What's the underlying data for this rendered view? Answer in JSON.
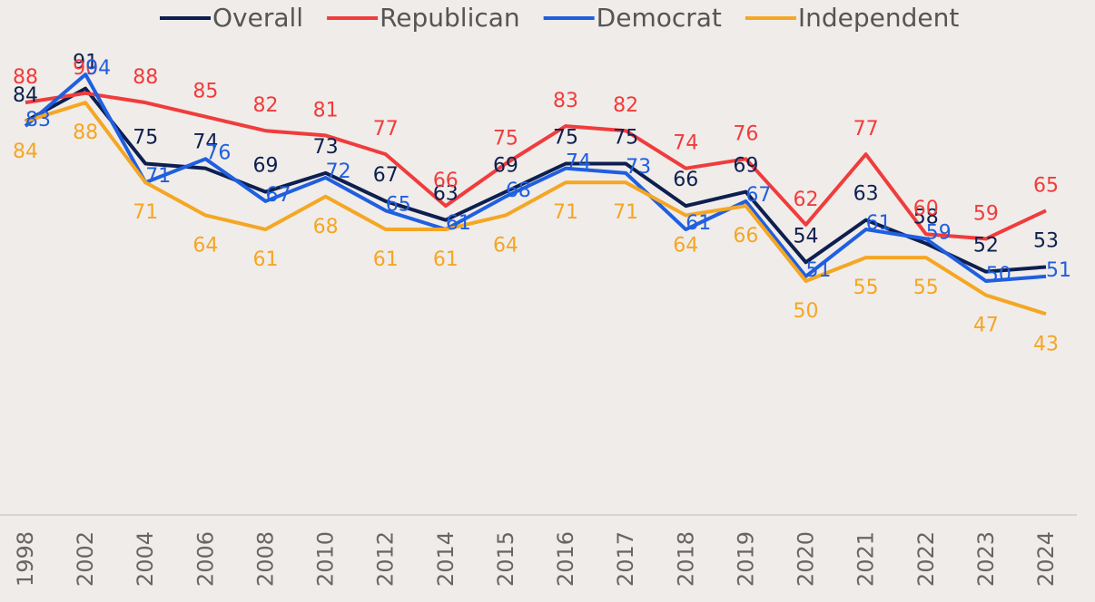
{
  "chart_data": {
    "type": "line",
    "categories": [
      "1998",
      "2002",
      "2004",
      "2006",
      "2008",
      "2010",
      "2012",
      "2014",
      "2015",
      "2016",
      "2017",
      "2018",
      "2019",
      "2020",
      "2021",
      "2022",
      "2023",
      "2024"
    ],
    "series": [
      {
        "name": "Overall",
        "color": "#0d1f4f",
        "values": [
          84,
          91,
          75,
          74,
          69,
          73,
          67,
          63,
          69,
          75,
          75,
          66,
          69,
          54,
          63,
          58,
          52,
          53
        ]
      },
      {
        "name": "Republican",
        "color": "#f03c3c",
        "values": [
          88,
          90,
          88,
          85,
          82,
          81,
          77,
          66,
          75,
          83,
          82,
          74,
          76,
          62,
          77,
          60,
          59,
          65
        ]
      },
      {
        "name": "Democrat",
        "color": "#1f5fe0",
        "values": [
          83,
          94,
          71,
          76,
          67,
          72,
          65,
          61,
          68,
          74,
          73,
          61,
          67,
          51,
          61,
          59,
          50,
          51
        ]
      },
      {
        "name": "Independent",
        "color": "#f5a623",
        "values": [
          84,
          88,
          71,
          64,
          61,
          68,
          61,
          61,
          64,
          71,
          71,
          64,
          66,
          50,
          55,
          55,
          47,
          43
        ]
      }
    ],
    "ylim": [
      0,
      100
    ],
    "legend": "top"
  }
}
